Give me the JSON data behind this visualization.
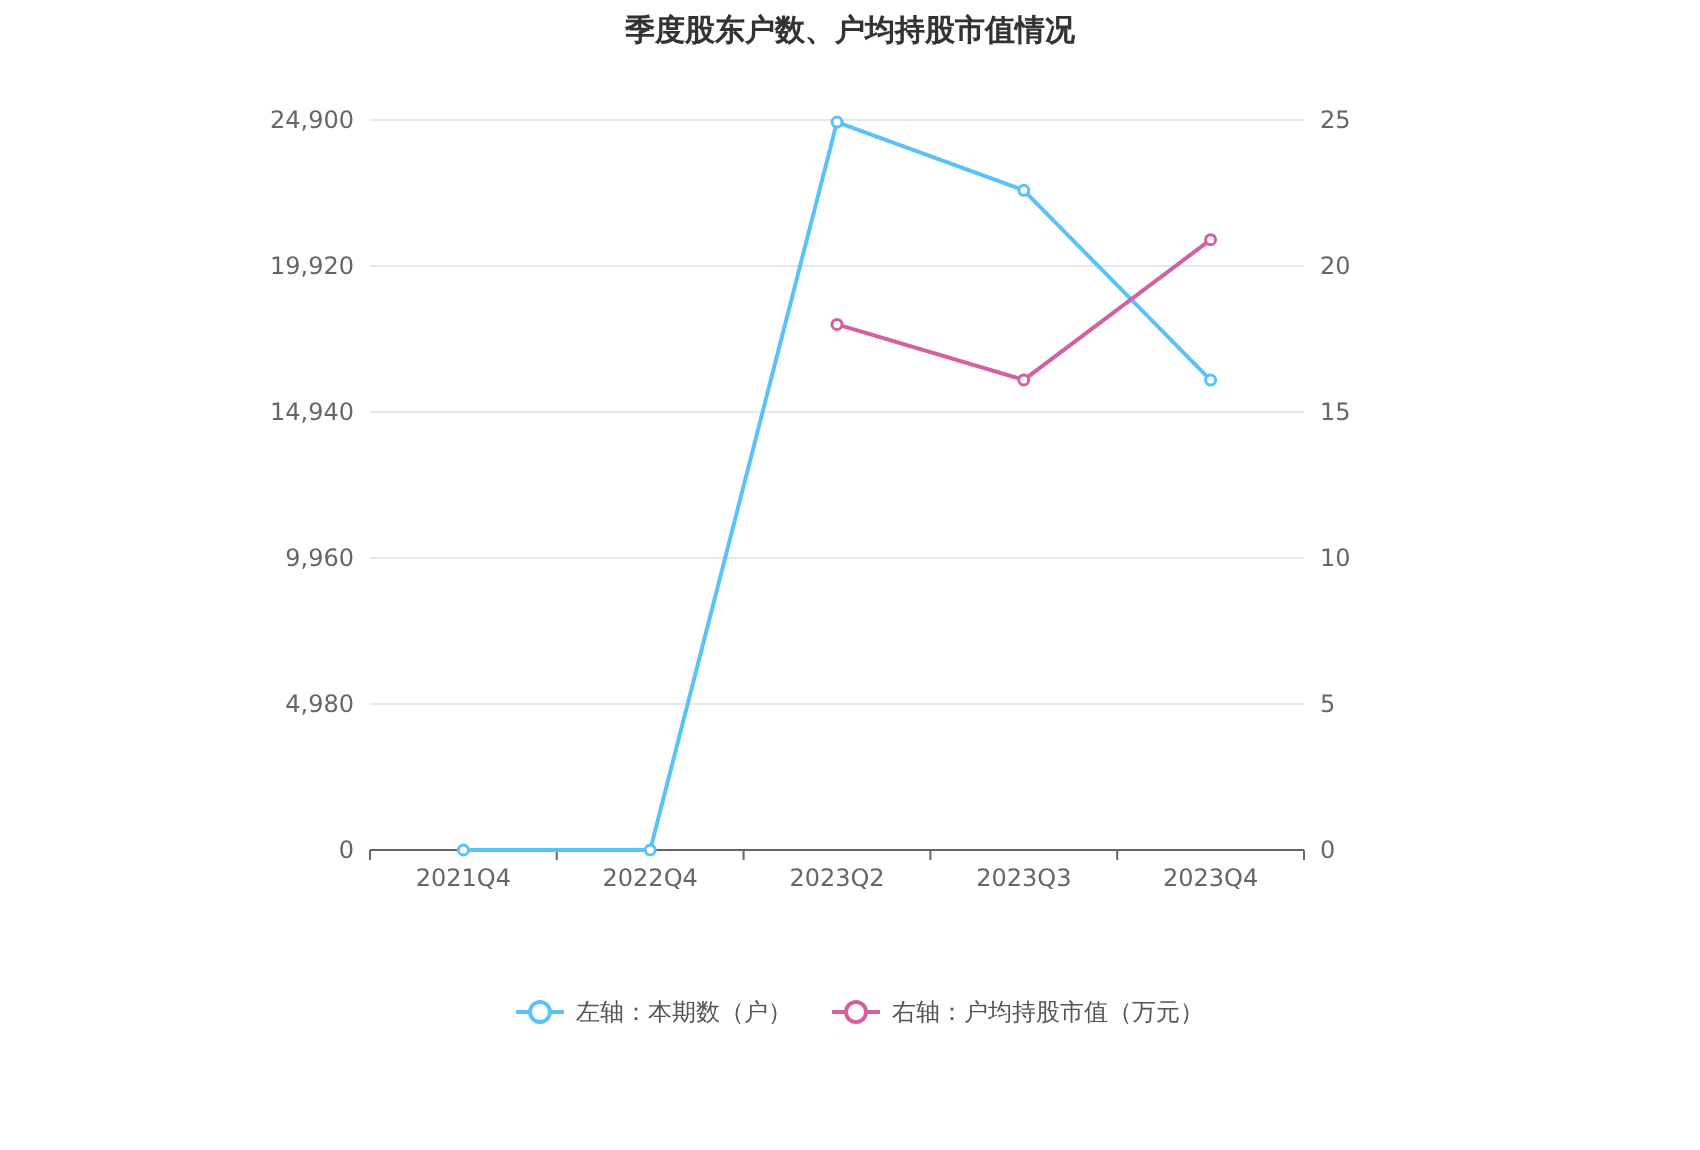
{
  "chart_data": {
    "type": "line",
    "title": "季度股东户数、户均持股市值情况",
    "categories": [
      "2021Q4",
      "2022Q4",
      "2023Q2",
      "2023Q3",
      "2023Q4"
    ],
    "series": [
      {
        "name": "左轴：本期数（户）",
        "color": "#5bc2f7",
        "values": [
          0,
          0,
          24830,
          22500,
          16030
        ]
      },
      {
        "name": "右轴：户均持股市值（万元）",
        "color": "#d4609f",
        "axis": "y2",
        "values": [
          null,
          null,
          18.0,
          16.1,
          20.9
        ]
      }
    ],
    "ylim": [
      0,
      24900
    ],
    "yticks": [
      0,
      {
        "value": 4980,
        "label": "4,980"
      },
      {
        "value": 9960,
        "label": "9,960"
      },
      {
        "value": 14940,
        "label": "14,940"
      },
      {
        "value": 19920,
        "label": "19,920"
      },
      {
        "value": 24900,
        "label": "24,900"
      }
    ],
    "y2lim": [
      0,
      25
    ],
    "y2ticks": [
      0,
      5,
      10,
      15,
      20,
      25
    ],
    "grid": "y",
    "legend": "bottom",
    "marker": "circle",
    "line_style": "solid"
  }
}
